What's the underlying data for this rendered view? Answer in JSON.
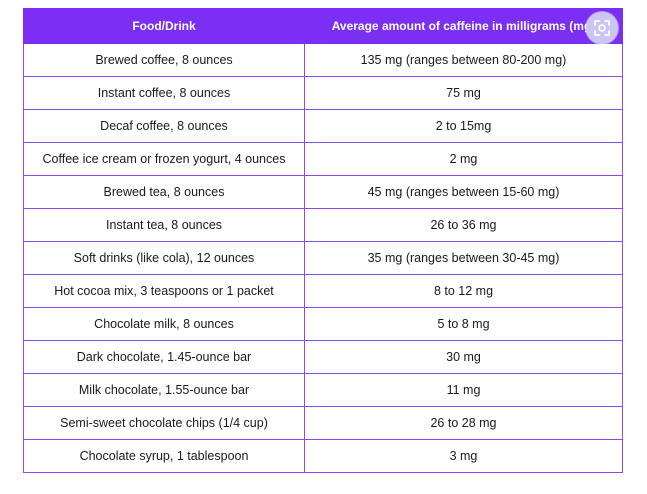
{
  "table": {
    "headers": [
      "Food/Drink",
      "Average amount of caffeine in milligrams (mg)"
    ],
    "rows": [
      [
        "Brewed coffee, 8 ounces",
        "135 mg (ranges between 80-200 mg)"
      ],
      [
        "Instant coffee, 8 ounces",
        "75 mg"
      ],
      [
        "Decaf coffee, 8 ounces",
        "2 to 15mg"
      ],
      [
        "Coffee ice cream or frozen yogurt, 4 ounces",
        "2 mg"
      ],
      [
        "Brewed tea, 8 ounces",
        "45 mg (ranges between 15-60 mg)"
      ],
      [
        "Instant tea, 8 ounces",
        "26 to 36 mg"
      ],
      [
        "Soft drinks (like cola), 12 ounces",
        "35 mg (ranges between 30-45 mg)"
      ],
      [
        "Hot cocoa mix, 3 teaspoons or 1 packet",
        "8 to 12 mg"
      ],
      [
        "Chocolate milk, 8 ounces",
        "5 to 8 mg"
      ],
      [
        "Dark chocolate, 1.45-ounce bar",
        "30 mg"
      ],
      [
        "Milk chocolate, 1.55-ounce bar",
        "11 mg"
      ],
      [
        "Semi-sweet chocolate chips (1/4 cup)",
        "26 to 28 mg"
      ],
      [
        "Chocolate syrup, 1 tablespoon",
        "3 mg"
      ]
    ]
  },
  "colors": {
    "header_bg": "#7B2FF2",
    "border": "#8a4af0",
    "overlay_button": "#c9c6f2"
  },
  "overlay": {
    "icon": "screenshot-capture-icon"
  }
}
